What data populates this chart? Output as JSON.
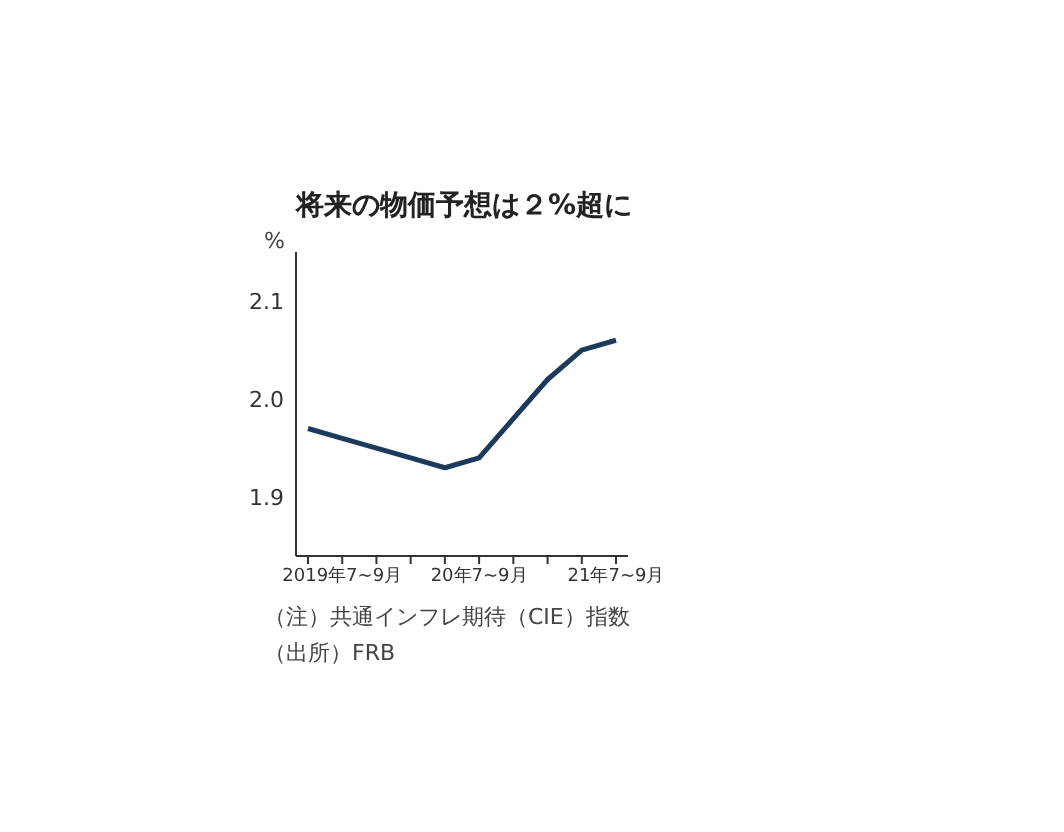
{
  "chart_data": {
    "type": "line",
    "title": "将来の物価予想は２%超に",
    "ylabel": "%",
    "categories": [
      null,
      "2019年7~9月",
      null,
      null,
      null,
      "20年7~9月",
      null,
      null,
      null,
      "21年7~9月"
    ],
    "series": [
      {
        "color": "#1b3a5c",
        "values": [
          1.97,
          1.96,
          1.95,
          1.94,
          1.93,
          1.94,
          1.98,
          2.02,
          2.05,
          2.06
        ]
      }
    ],
    "ylim": [
      1.84,
      2.15
    ],
    "yticks": [
      1.9,
      {
        "value": 2,
        "label": "2.0"
      },
      2.1
    ],
    "grid": false,
    "legend": false,
    "marker": "none",
    "line_style": "solid",
    "annotations": [
      "（注）共通インフレ期待（CIE）指数",
      "（出所）FRB"
    ]
  }
}
